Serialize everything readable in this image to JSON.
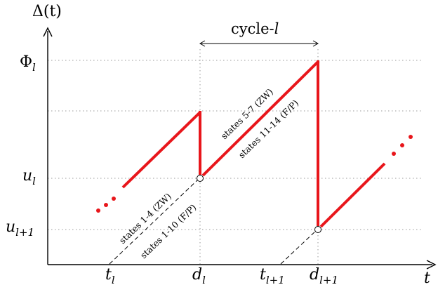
{
  "axes": {
    "y_label": "Δ(t)",
    "x_label": "t"
  },
  "y_ticks": {
    "phi": {
      "base": "Φ",
      "sub": "l"
    },
    "u_l": {
      "base": "u",
      "sub": "l"
    },
    "u_l1": {
      "base": "u",
      "sub": "l+1"
    }
  },
  "x_ticks": {
    "t_l": {
      "base": "t",
      "sub": "l"
    },
    "d_l": {
      "base": "d",
      "sub": "l"
    },
    "t_l1": {
      "base": "t",
      "sub": "l+1"
    },
    "d_l1": {
      "base": "d",
      "sub": "l+1"
    }
  },
  "cycle_label": {
    "text": "cycle-",
    "var": "l"
  },
  "annotations": {
    "upper_zw": "states 5-7 (ZW)",
    "upper_fp": "states 11-14 (F/P)",
    "lower_zw": "states 1-4 (ZW)",
    "lower_fp": "states 1-10 (F/P)"
  },
  "colors": {
    "curve": "#e8161b",
    "axis": "#000000",
    "grid": "#9a9a9a"
  }
}
